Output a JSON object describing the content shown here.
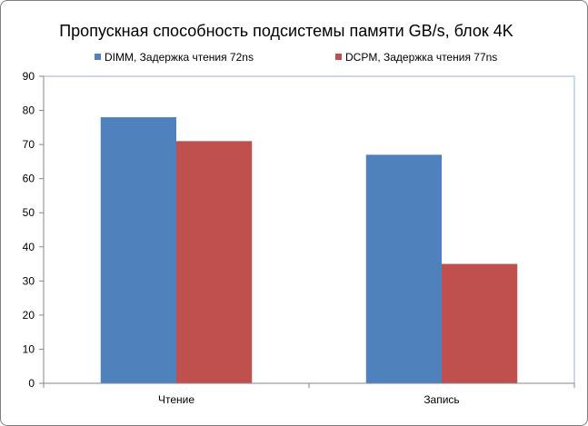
{
  "chart_data": {
    "type": "bar",
    "title": "Пропускная способность подсистемы памяти GB/s, блок 4K",
    "categories": [
      "Чтение",
      "Запись"
    ],
    "series": [
      {
        "name": "DIMM, Задержка чтения 72ns",
        "values": [
          78,
          67
        ],
        "color": "#4f81bd"
      },
      {
        "name": "DCPM, Задержка чтения 77ns",
        "values": [
          71,
          35
        ],
        "color": "#c0504d"
      }
    ],
    "ylim": [
      0,
      90
    ],
    "yticks": [
      0,
      10,
      20,
      30,
      40,
      50,
      60,
      70,
      80,
      90
    ],
    "grid": false,
    "legend": "top"
  }
}
